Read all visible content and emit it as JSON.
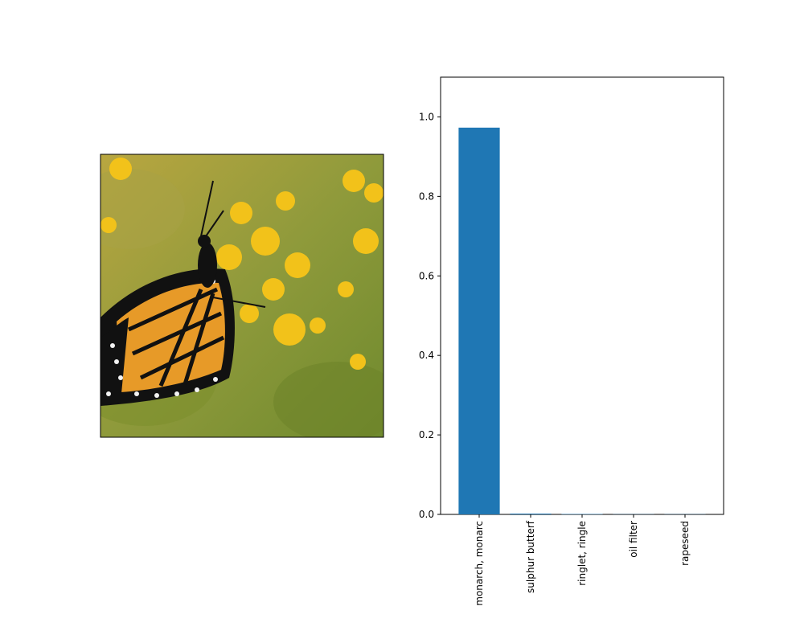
{
  "image_panel": {
    "subject": "monarch butterfly on yellow flowers",
    "colors": {
      "background": "#8a9a3a",
      "flower": "#f2c21a",
      "wing": "#e79a28",
      "vein": "#111111",
      "spot": "#f2f2f2"
    }
  },
  "chart_data": {
    "type": "bar",
    "categories": [
      "monarch, monarc",
      "sulphur butterf",
      "ringlet, ringle",
      "oil filter",
      "rapeseed"
    ],
    "values": [
      0.973,
      0.002,
      0.001,
      0.0005,
      0.0005
    ],
    "ylim": [
      0,
      1.1
    ],
    "yticks": [
      0.0,
      0.2,
      0.4,
      0.6,
      0.8,
      1.0
    ],
    "ytick_labels": [
      "0.0",
      "0.2",
      "0.4",
      "0.6",
      "0.8",
      "1.0"
    ],
    "title": "",
    "xlabel": "",
    "ylabel": "",
    "grid": false,
    "bar_color": "#1f77b4",
    "x_tick_rotation": "vertical"
  }
}
